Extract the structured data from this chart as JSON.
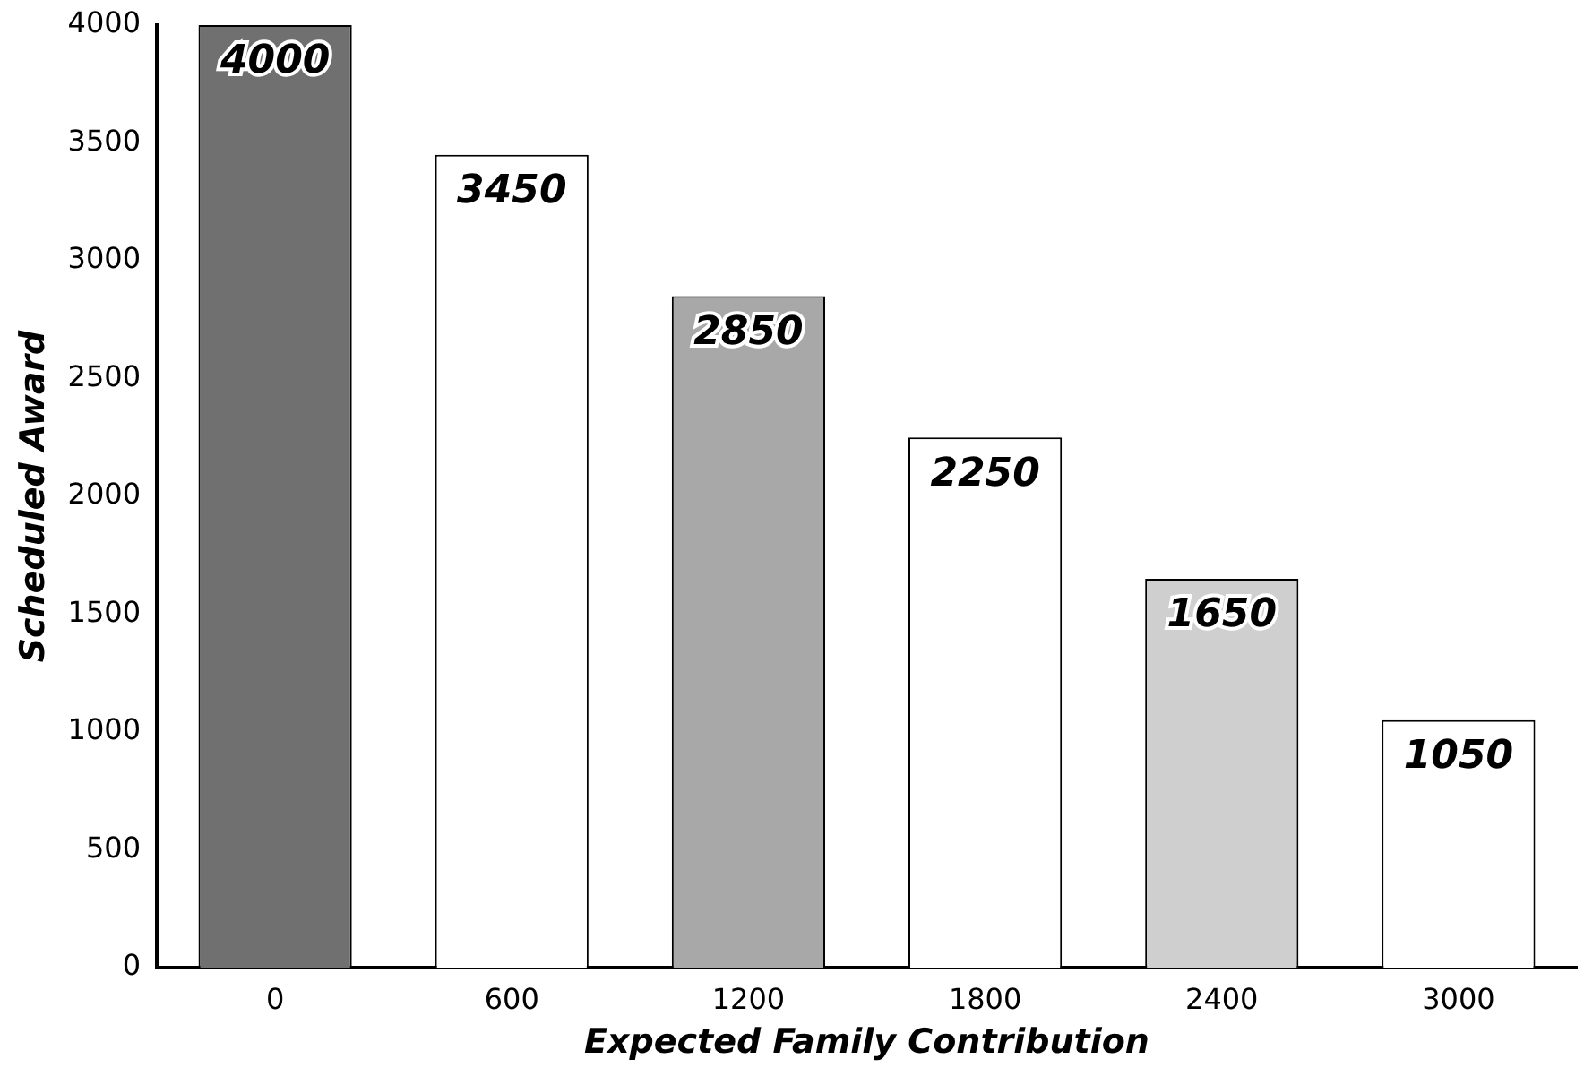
{
  "chart_data": {
    "type": "bar",
    "xlabel": "Expected Family Contribution",
    "ylabel": "Scheduled Award",
    "categories": [
      "0",
      "600",
      "1200",
      "1800",
      "2400",
      "3000"
    ],
    "values": [
      4000,
      3450,
      2850,
      2250,
      1650,
      1050
    ],
    "colors": [
      "#707070",
      "#ffffff",
      "#a8a8a8",
      "#ffffff",
      "#cfcfcf",
      "#ffffff"
    ],
    "ylim": [
      0,
      4000
    ],
    "yticks": [
      0,
      500,
      1000,
      1500,
      2000,
      2500,
      3000,
      3500,
      4000
    ],
    "data_labels": true,
    "grid": false,
    "legend": false
  }
}
